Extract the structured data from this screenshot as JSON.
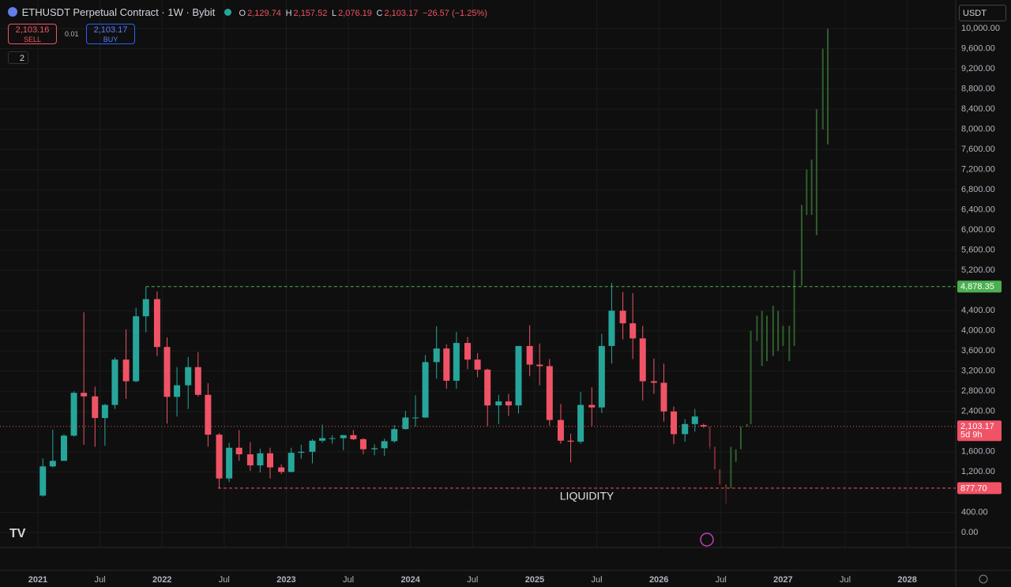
{
  "header": {
    "symbol": "ETHUSDT Perpetual Contract · 1W · Bybit",
    "o_label": "O",
    "o": "2,129.74",
    "h_label": "H",
    "h": "2,157.52",
    "l_label": "L",
    "l": "2,076.19",
    "c_label": "C",
    "c": "2,103.17",
    "change": "−26.57 (−1.25%)"
  },
  "trade": {
    "sell_price": "2,103.16",
    "sell": "SELL",
    "qty": "0.01",
    "buy_price": "2,103.17",
    "buy": "BUY",
    "indicators": "2",
    "currency": "USDT"
  },
  "chart_data": {
    "type": "candlestick",
    "annotation": "LIQUIDITY",
    "up_color": "#26a69a",
    "down_color": "#f05366",
    "proj_up_color": "#2f5e2c",
    "proj_down_color": "#7b2a35",
    "xlim": [
      2020.695,
      2028.39
    ],
    "xticks": [
      {
        "value": 2021,
        "label": "2021"
      },
      {
        "value": 2021.5,
        "label": "Jul"
      },
      {
        "value": 2022,
        "label": "2022"
      },
      {
        "value": 2022.5,
        "label": "Jul"
      },
      {
        "value": 2023,
        "label": "2023"
      },
      {
        "value": 2023.5,
        "label": "Jul"
      },
      {
        "value": 2024,
        "label": "2024"
      },
      {
        "value": 2024.5,
        "label": "Jul"
      },
      {
        "value": 2025,
        "label": "2025"
      },
      {
        "value": 2025.5,
        "label": "Jul"
      },
      {
        "value": 2026,
        "label": "2026"
      },
      {
        "value": 2026.5,
        "label": "Jul"
      },
      {
        "value": 2027,
        "label": "2027"
      },
      {
        "value": 2027.5,
        "label": "Jul"
      },
      {
        "value": 2028,
        "label": "2028"
      }
    ],
    "ylim": [
      -300,
      10567
    ],
    "yticks": [
      {
        "value": 0,
        "label": "0.00"
      },
      {
        "value": 400,
        "label": "400.00"
      },
      {
        "value": 1200,
        "label": "1,200.00"
      },
      {
        "value": 1600,
        "label": "1,600.00"
      },
      {
        "value": 2400,
        "label": "2,400.00"
      },
      {
        "value": 2800,
        "label": "2,800.00"
      },
      {
        "value": 3200,
        "label": "3,200.00"
      },
      {
        "value": 3600,
        "label": "3,600.00"
      },
      {
        "value": 4000,
        "label": "4,000.00"
      },
      {
        "value": 4400,
        "label": "4,400.00"
      },
      {
        "value": 5200,
        "label": "5,200.00"
      },
      {
        "value": 5600,
        "label": "5,600.00"
      },
      {
        "value": 6000,
        "label": "6,000.00"
      },
      {
        "value": 6400,
        "label": "6,400.00"
      },
      {
        "value": 6800,
        "label": "6,800.00"
      },
      {
        "value": 7200,
        "label": "7,200.00"
      },
      {
        "value": 7600,
        "label": "7,600.00"
      },
      {
        "value": 8000,
        "label": "8,000.00"
      },
      {
        "value": 8400,
        "label": "8,400.00"
      },
      {
        "value": 8800,
        "label": "8,800.00"
      },
      {
        "value": 9200,
        "label": "9,200.00"
      },
      {
        "value": 9600,
        "label": "9,600.00"
      },
      {
        "value": 10000,
        "label": "10,000.00"
      }
    ],
    "levels": [
      {
        "value": 4878.35,
        "label": "4,878.35",
        "from": 2021.87,
        "color": "#4caf50",
        "dash": "4 3"
      },
      {
        "value": 2103.17,
        "label": "2,103.17",
        "sub": "5d 9h",
        "from": 2020.695,
        "color": "#f05366",
        "dash": "1 3"
      },
      {
        "value": 877.7,
        "label": "877.70",
        "from": 2022.45,
        "color": "#f05366",
        "dash": "4 3"
      }
    ],
    "candles": [
      [
        2021.04,
        730,
        1470,
        710,
        1310
      ],
      [
        2021.12,
        1310,
        2040,
        1290,
        1420
      ],
      [
        2021.21,
        1420,
        1950,
        1420,
        1920
      ],
      [
        2021.29,
        1920,
        2800,
        1900,
        2770
      ],
      [
        2021.37,
        2770,
        4370,
        1740,
        2700
      ],
      [
        2021.46,
        2700,
        2890,
        1700,
        2270
      ],
      [
        2021.54,
        2270,
        2550,
        1720,
        2530
      ],
      [
        2021.62,
        2530,
        3470,
        2450,
        3430
      ],
      [
        2021.71,
        3430,
        4030,
        2650,
        3000
      ],
      [
        2021.79,
        3000,
        4460,
        2980,
        4290
      ],
      [
        2021.87,
        4290,
        4878,
        3970,
        4630
      ],
      [
        2021.96,
        4630,
        4780,
        3500,
        3680
      ],
      [
        2022.04,
        3680,
        3870,
        2160,
        2690
      ],
      [
        2022.12,
        2690,
        3280,
        2300,
        2920
      ],
      [
        2022.21,
        2920,
        3480,
        2450,
        3280
      ],
      [
        2022.29,
        3280,
        3580,
        2700,
        2730
      ],
      [
        2022.37,
        2730,
        2960,
        1700,
        1940
      ],
      [
        2022.46,
        1940,
        1970,
        880,
        1070
      ],
      [
        2022.54,
        1070,
        1780,
        1000,
        1680
      ],
      [
        2022.62,
        1680,
        2030,
        1420,
        1550
      ],
      [
        2022.71,
        1550,
        1790,
        1220,
        1330
      ],
      [
        2022.79,
        1330,
        1660,
        1190,
        1570
      ],
      [
        2022.87,
        1570,
        1680,
        1070,
        1290
      ],
      [
        2022.96,
        1290,
        1350,
        1160,
        1200
      ],
      [
        2023.04,
        1200,
        1680,
        1190,
        1580
      ],
      [
        2023.12,
        1580,
        1740,
        1460,
        1600
      ],
      [
        2023.21,
        1600,
        1850,
        1370,
        1820
      ],
      [
        2023.29,
        1820,
        2140,
        1780,
        1870
      ],
      [
        2023.37,
        1870,
        1930,
        1760,
        1870
      ],
      [
        2023.46,
        1870,
        1930,
        1630,
        1930
      ],
      [
        2023.54,
        1930,
        2030,
        1830,
        1850
      ],
      [
        2023.62,
        1850,
        1870,
        1550,
        1650
      ],
      [
        2023.71,
        1650,
        1750,
        1530,
        1670
      ],
      [
        2023.79,
        1670,
        1860,
        1520,
        1810
      ],
      [
        2023.87,
        1810,
        2130,
        1780,
        2050
      ],
      [
        2023.96,
        2050,
        2410,
        2040,
        2280
      ],
      [
        2024.04,
        2280,
        2720,
        2100,
        2280
      ],
      [
        2024.12,
        2280,
        3520,
        2270,
        3380
      ],
      [
        2024.21,
        3380,
        4090,
        3050,
        3650
      ],
      [
        2024.29,
        3650,
        3730,
        2850,
        3010
      ],
      [
        2024.37,
        3010,
        3980,
        2850,
        3760
      ],
      [
        2024.46,
        3760,
        3880,
        3240,
        3430
      ],
      [
        2024.54,
        3430,
        3560,
        3080,
        3230
      ],
      [
        2024.62,
        3230,
        3250,
        2110,
        2520
      ],
      [
        2024.71,
        2520,
        2730,
        2150,
        2600
      ],
      [
        2024.79,
        2600,
        2750,
        2310,
        2520
      ],
      [
        2024.87,
        2520,
        3680,
        2360,
        3700
      ],
      [
        2024.96,
        3700,
        4110,
        3100,
        3330
      ],
      [
        2025.04,
        3330,
        3750,
        2920,
        3300
      ],
      [
        2025.12,
        3300,
        3440,
        2120,
        2230
      ],
      [
        2025.21,
        2230,
        2550,
        1760,
        1820
      ],
      [
        2025.29,
        1820,
        1960,
        1390,
        1800
      ],
      [
        2025.37,
        1800,
        2790,
        1760,
        2530
      ],
      [
        2025.46,
        2530,
        2880,
        2110,
        2480
      ],
      [
        2025.54,
        2480,
        3940,
        2370,
        3700
      ],
      [
        2025.62,
        3700,
        4950,
        3350,
        4400
      ],
      [
        2025.71,
        4400,
        4770,
        3830,
        4150
      ],
      [
        2025.79,
        4150,
        4750,
        3440,
        3850
      ],
      [
        2025.87,
        3850,
        4100,
        2620,
        3000
      ],
      [
        2025.96,
        3000,
        3450,
        2750,
        2970
      ],
      [
        2026.04,
        2970,
        3350,
        2200,
        2400
      ],
      [
        2026.12,
        2400,
        2500,
        1750,
        1950
      ],
      [
        2026.21,
        1950,
        2250,
        1800,
        2150
      ],
      [
        2026.29,
        2150,
        2450,
        2000,
        2300
      ],
      [
        2026.36,
        2129.74,
        2157.52,
        2076.19,
        2103.17
      ]
    ],
    "projection": [
      [
        2026.41,
        2100,
        2100,
        1650,
        1700
      ],
      [
        2026.45,
        1700,
        1700,
        1250,
        1250
      ],
      [
        2026.49,
        1250,
        1250,
        950,
        950
      ],
      [
        2026.54,
        950,
        950,
        570,
        880
      ],
      [
        2026.58,
        880,
        1700,
        880,
        1700
      ],
      [
        2026.62,
        1400,
        1650,
        1400,
        1650
      ],
      [
        2026.66,
        1650,
        2100,
        1650,
        2100
      ],
      [
        2026.71,
        2100,
        2150,
        2100,
        2150
      ],
      [
        2026.74,
        2150,
        4000,
        2150,
        4000
      ],
      [
        2026.79,
        3800,
        4300,
        3800,
        4300
      ],
      [
        2026.83,
        3300,
        4400,
        3300,
        4400
      ],
      [
        2026.87,
        3400,
        4300,
        3400,
        4300
      ],
      [
        2026.92,
        3500,
        4500,
        3500,
        4500
      ],
      [
        2026.96,
        3600,
        4400,
        3600,
        4400
      ],
      [
        2027.0,
        3700,
        4100,
        3700,
        4100
      ],
      [
        2027.05,
        3400,
        4100,
        3400,
        4100
      ],
      [
        2027.09,
        3700,
        5200,
        3700,
        5200
      ],
      [
        2027.15,
        4900,
        6500,
        4900,
        6500
      ],
      [
        2027.19,
        6300,
        7200,
        6300,
        7200
      ],
      [
        2027.23,
        6300,
        7400,
        6300,
        7400
      ],
      [
        2027.27,
        5900,
        8400,
        5900,
        8400
      ],
      [
        2027.32,
        8000,
        9600,
        8000,
        9600
      ],
      [
        2027.36,
        7700,
        10000,
        7700,
        10000
      ]
    ]
  }
}
